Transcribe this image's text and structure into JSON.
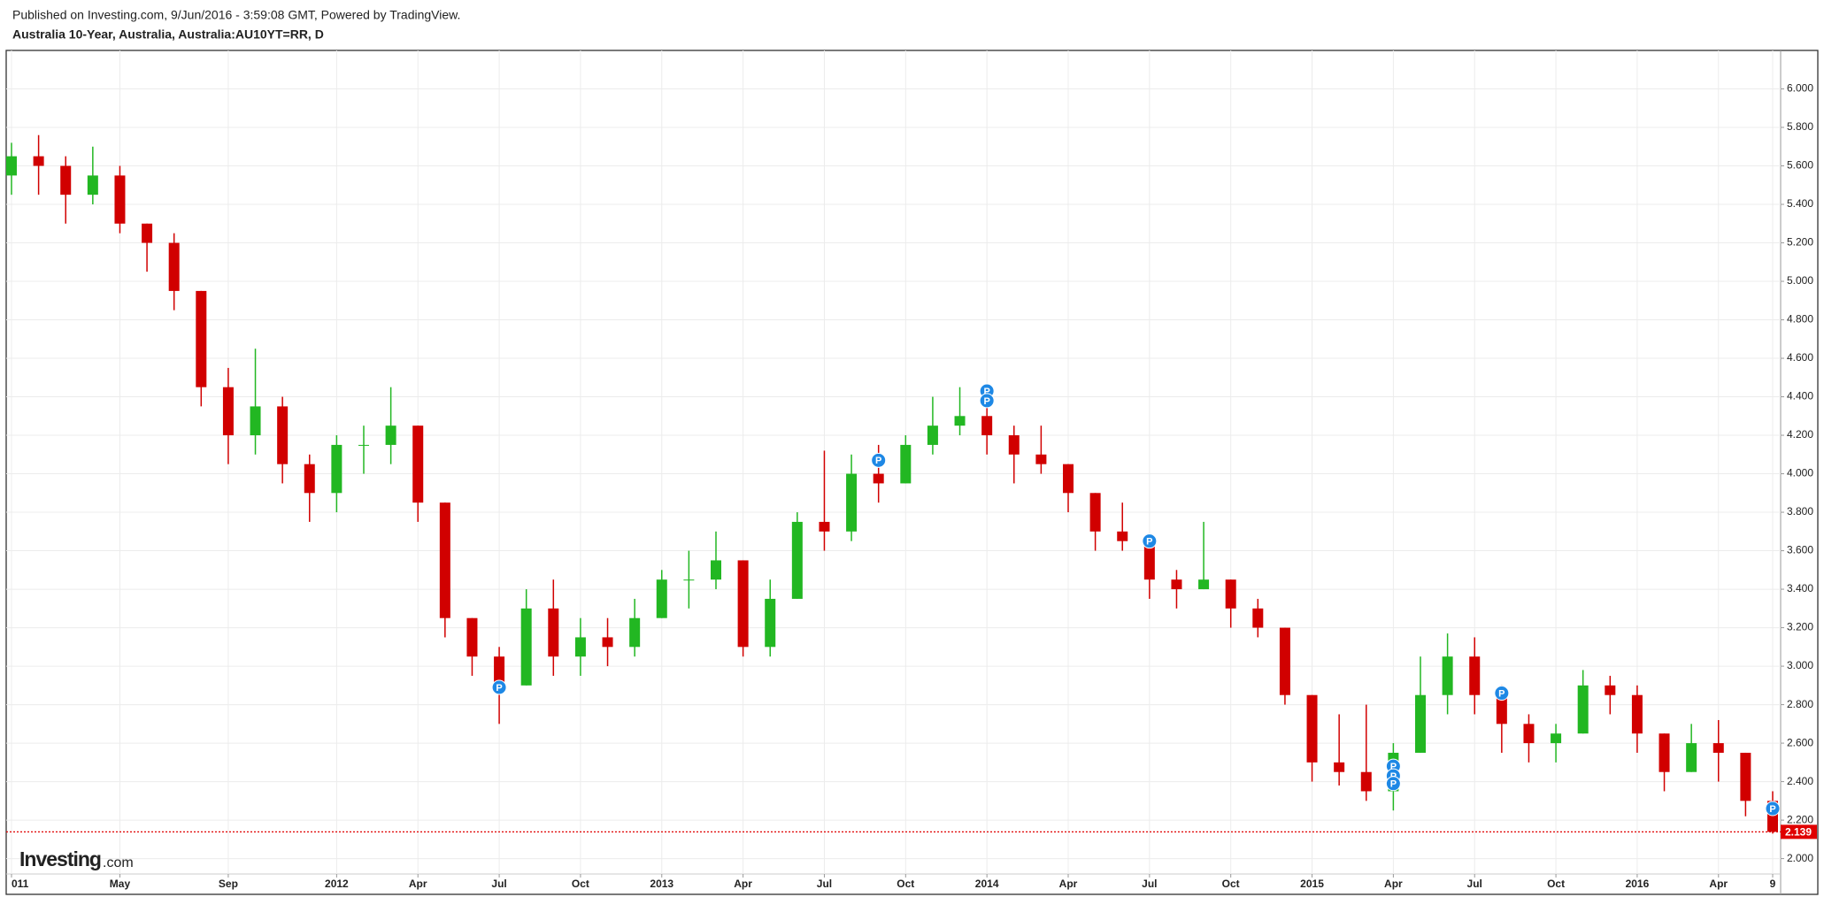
{
  "header": {
    "published": "Published on Investing.com, 9/Jun/2016 - 3:59:08 GMT, Powered by TradingView.",
    "instrument": "Australia 10-Year, Australia, Australia:AU10YT=RR, D"
  },
  "logo": {
    "name": "Investing",
    "suffix": ".com"
  },
  "chart_data": {
    "type": "candlestick",
    "x": [
      "2011-01",
      "2011-02",
      "2011-03",
      "2011-04",
      "2011-05",
      "2011-06",
      "2011-07",
      "2011-08",
      "2011-09",
      "2011-10",
      "2011-11",
      "2011-12",
      "2012-01",
      "2012-02",
      "2012-03",
      "2012-04",
      "2012-05",
      "2012-06",
      "2012-07",
      "2012-08",
      "2012-09",
      "2012-10",
      "2012-11",
      "2012-12",
      "2013-01",
      "2013-02",
      "2013-03",
      "2013-04",
      "2013-05",
      "2013-06",
      "2013-07",
      "2013-08",
      "2013-09",
      "2013-10",
      "2013-11",
      "2013-12",
      "2014-01",
      "2014-02",
      "2014-03",
      "2014-04",
      "2014-05",
      "2014-06",
      "2014-07",
      "2014-08",
      "2014-09",
      "2014-10",
      "2014-11",
      "2014-12",
      "2015-01",
      "2015-02",
      "2015-03",
      "2015-04",
      "2015-05",
      "2015-06",
      "2015-07",
      "2015-08",
      "2015-09",
      "2015-10",
      "2015-11",
      "2015-12",
      "2016-01",
      "2016-02",
      "2016-03",
      "2016-04",
      "2016-05",
      "2016-06"
    ],
    "open": [
      5.55,
      5.65,
      5.6,
      5.45,
      5.55,
      5.3,
      5.2,
      4.95,
      4.45,
      4.2,
      4.35,
      4.05,
      3.9,
      4.15,
      4.15,
      4.25,
      3.85,
      3.25,
      3.05,
      2.9,
      3.3,
      3.05,
      3.15,
      3.1,
      3.25,
      3.45,
      3.45,
      3.55,
      3.1,
      3.35,
      3.75,
      3.7,
      4.0,
      3.95,
      4.15,
      4.25,
      4.3,
      4.2,
      4.1,
      4.05,
      3.9,
      3.7,
      3.65,
      3.45,
      3.4,
      3.45,
      3.3,
      3.2,
      2.85,
      2.5,
      2.45,
      2.35,
      2.55,
      2.85,
      3.05,
      2.85,
      2.7,
      2.6,
      2.65,
      2.9,
      2.85,
      2.65,
      2.45,
      2.6,
      2.55,
      2.3
    ],
    "high": [
      5.72,
      5.76,
      5.65,
      5.7,
      5.6,
      5.3,
      5.25,
      4.95,
      4.55,
      4.65,
      4.4,
      4.1,
      4.2,
      4.25,
      4.45,
      4.25,
      3.85,
      3.25,
      3.1,
      3.4,
      3.45,
      3.25,
      3.25,
      3.35,
      3.5,
      3.6,
      3.7,
      3.55,
      3.45,
      3.8,
      4.12,
      4.1,
      4.15,
      4.2,
      4.4,
      4.45,
      4.35,
      4.25,
      4.25,
      4.05,
      3.9,
      3.85,
      3.65,
      3.5,
      3.75,
      3.45,
      3.35,
      3.2,
      2.85,
      2.75,
      2.8,
      2.6,
      3.05,
      3.17,
      3.15,
      2.9,
      2.75,
      2.7,
      2.98,
      2.95,
      2.9,
      2.65,
      2.7,
      2.72,
      2.55,
      2.35
    ],
    "low": [
      5.45,
      5.45,
      5.3,
      5.4,
      5.25,
      5.05,
      4.85,
      4.35,
      4.05,
      4.1,
      3.95,
      3.75,
      3.8,
      4.0,
      4.05,
      3.75,
      3.15,
      2.95,
      2.7,
      2.9,
      2.95,
      2.95,
      3.0,
      3.05,
      3.25,
      3.3,
      3.4,
      3.05,
      3.05,
      3.35,
      3.6,
      3.65,
      3.85,
      3.95,
      4.1,
      4.2,
      4.1,
      3.95,
      4.0,
      3.8,
      3.6,
      3.6,
      3.35,
      3.3,
      3.4,
      3.2,
      3.15,
      2.8,
      2.4,
      2.38,
      2.3,
      2.25,
      2.55,
      2.75,
      2.75,
      2.55,
      2.5,
      2.5,
      2.65,
      2.75,
      2.55,
      2.35,
      2.45,
      2.4,
      2.22,
      2.13
    ],
    "close": [
      5.65,
      5.6,
      5.45,
      5.55,
      5.3,
      5.2,
      4.95,
      4.45,
      4.2,
      4.35,
      4.05,
      3.9,
      4.15,
      4.15,
      4.25,
      3.85,
      3.25,
      3.05,
      2.9,
      3.3,
      3.05,
      3.15,
      3.1,
      3.25,
      3.45,
      3.45,
      3.55,
      3.1,
      3.35,
      3.75,
      3.7,
      4.0,
      3.95,
      4.15,
      4.25,
      4.3,
      4.2,
      4.1,
      4.05,
      3.9,
      3.7,
      3.65,
      3.45,
      3.4,
      3.45,
      3.3,
      3.2,
      2.85,
      2.5,
      2.45,
      2.35,
      2.55,
      2.85,
      3.05,
      2.85,
      2.7,
      2.6,
      2.65,
      2.9,
      2.85,
      2.65,
      2.45,
      2.6,
      2.55,
      2.3,
      2.139
    ],
    "up_color": "#22b722",
    "down_color": "#d10000",
    "ylim": [
      1.92,
      6.2
    ],
    "yticks": [
      {
        "value": 2.0,
        "label": "2.000"
      },
      {
        "value": 2.2,
        "label": "2.200"
      },
      {
        "value": 2.4,
        "label": "2.400"
      },
      {
        "value": 2.6,
        "label": "2.600"
      },
      {
        "value": 2.8,
        "label": "2.800"
      },
      {
        "value": 3.0,
        "label": "3.000"
      },
      {
        "value": 3.2,
        "label": "3.200"
      },
      {
        "value": 3.4,
        "label": "3.400"
      },
      {
        "value": 3.6,
        "label": "3.600"
      },
      {
        "value": 3.8,
        "label": "3.800"
      },
      {
        "value": 4.0,
        "label": "4.000"
      },
      {
        "value": 4.2,
        "label": "4.200"
      },
      {
        "value": 4.4,
        "label": "4.400"
      },
      {
        "value": 4.6,
        "label": "4.600"
      },
      {
        "value": 4.8,
        "label": "4.800"
      },
      {
        "value": 5.0,
        "label": "5.000"
      },
      {
        "value": 5.2,
        "label": "5.200"
      },
      {
        "value": 5.4,
        "label": "5.400"
      },
      {
        "value": 5.6,
        "label": "5.600"
      },
      {
        "value": 5.8,
        "label": "5.800"
      },
      {
        "value": 6.0,
        "label": "6.000"
      }
    ],
    "xticks": [
      {
        "value": "2011-01",
        "label": "011"
      },
      {
        "value": "2011-05",
        "label": "May"
      },
      {
        "value": "2011-09",
        "label": "Sep"
      },
      {
        "value": "2012-01",
        "label": "2012"
      },
      {
        "value": "2012-04",
        "label": "Apr"
      },
      {
        "value": "2012-07",
        "label": "Jul"
      },
      {
        "value": "2012-10",
        "label": "Oct"
      },
      {
        "value": "2013-01",
        "label": "2013"
      },
      {
        "value": "2013-04",
        "label": "Apr"
      },
      {
        "value": "2013-07",
        "label": "Jul"
      },
      {
        "value": "2013-10",
        "label": "Oct"
      },
      {
        "value": "2014-01",
        "label": "2014"
      },
      {
        "value": "2014-04",
        "label": "Apr"
      },
      {
        "value": "2014-07",
        "label": "Jul"
      },
      {
        "value": "2014-10",
        "label": "Oct"
      },
      {
        "value": "2015-01",
        "label": "2015"
      },
      {
        "value": "2015-04",
        "label": "Apr"
      },
      {
        "value": "2015-07",
        "label": "Jul"
      },
      {
        "value": "2015-10",
        "label": "Oct"
      },
      {
        "value": "2016-01",
        "label": "2016"
      },
      {
        "value": "2016-04",
        "label": "Apr"
      },
      {
        "value": "2016-06",
        "label": "9"
      }
    ],
    "grid": true,
    "last_price": 2.139,
    "last_price_color": "#e00000",
    "markers": [
      {
        "x": "2012-07",
        "y": 2.89,
        "label": "P"
      },
      {
        "x": "2013-09",
        "y": 4.07,
        "label": "P"
      },
      {
        "x": "2014-01",
        "y": 4.43,
        "label": "P"
      },
      {
        "x": "2014-01",
        "y": 4.38,
        "label": "P"
      },
      {
        "x": "2014-07",
        "y": 3.65,
        "label": "P"
      },
      {
        "x": "2015-04",
        "y": 2.48,
        "label": "P"
      },
      {
        "x": "2015-04",
        "y": 2.43,
        "label": "P"
      },
      {
        "x": "2015-04",
        "y": 2.39,
        "label": "P"
      },
      {
        "x": "2015-08",
        "y": 2.86,
        "label": "P"
      },
      {
        "x": "2016-06",
        "y": 2.26,
        "label": "P"
      }
    ],
    "marker_color": "#1e88e5"
  }
}
